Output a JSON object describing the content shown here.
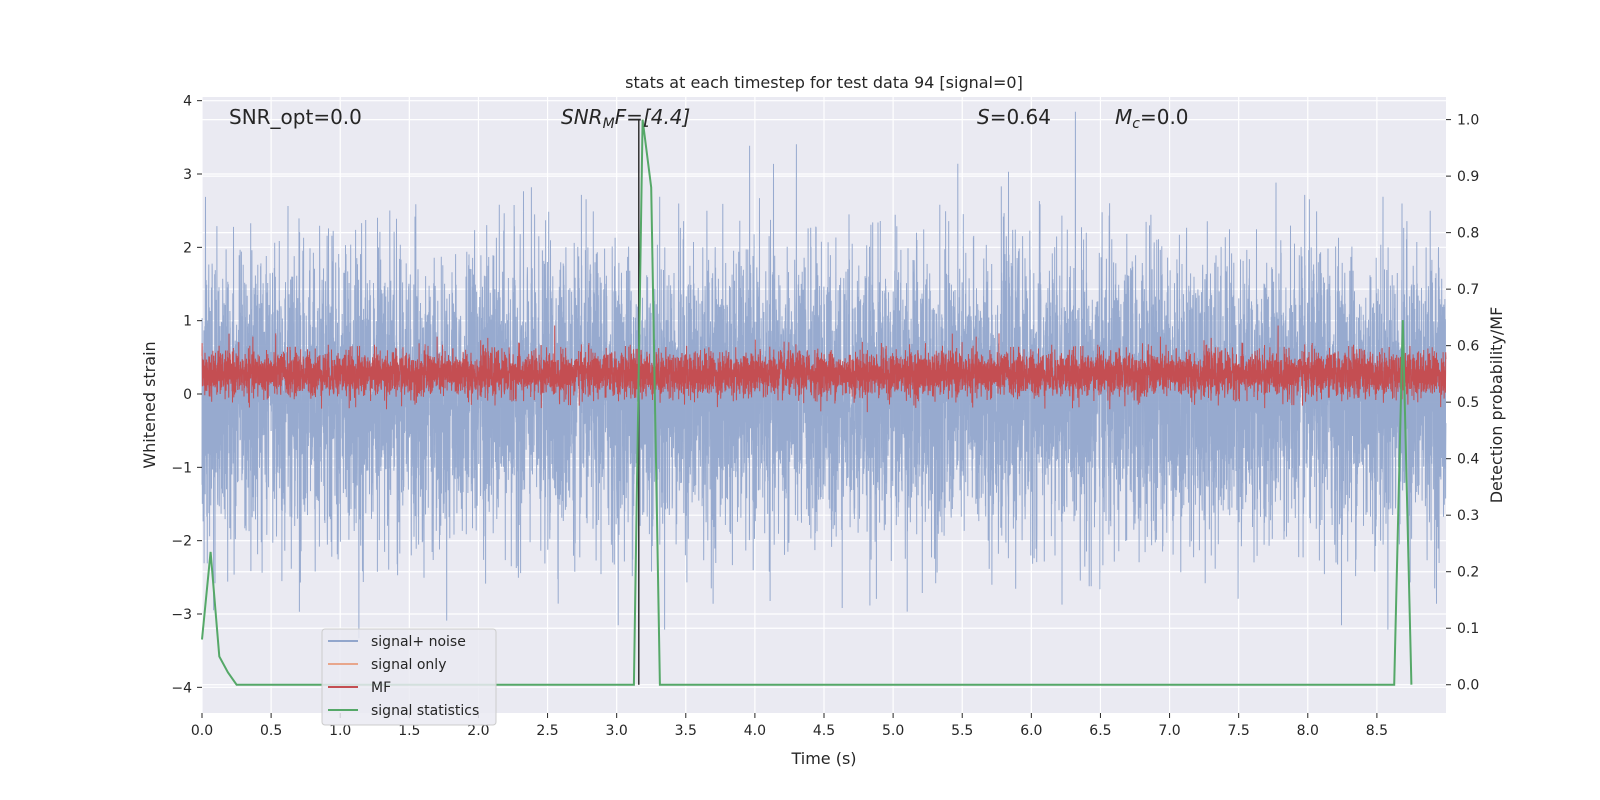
{
  "chart_data": {
    "type": "line",
    "title": "stats at each timestep for test data 94 [signal=0]",
    "xlabel": "Time (s)",
    "ylabel_left": "Whitened strain",
    "ylabel_right": "Detection probability/MF",
    "xlim": [
      0.0,
      9.0
    ],
    "ylim_left": [
      -4.35,
      4.05
    ],
    "ylim_right": [
      -0.05,
      1.04
    ],
    "x_ticks": [
      0.0,
      0.5,
      1.0,
      1.5,
      2.0,
      2.5,
      3.0,
      3.5,
      4.0,
      4.5,
      5.0,
      5.5,
      6.0,
      6.5,
      7.0,
      7.5,
      8.0,
      8.5
    ],
    "x_tick_labels": [
      "0.0",
      "0.5",
      "1.0",
      "1.5",
      "2.0",
      "2.5",
      "3.0",
      "3.5",
      "4.0",
      "4.5",
      "5.0",
      "5.5",
      "6.0",
      "6.5",
      "7.0",
      "7.5",
      "8.0",
      "8.5"
    ],
    "y_left_ticks": [
      -4,
      -3,
      -2,
      -1,
      0,
      1,
      2,
      3,
      4
    ],
    "y_left_tick_labels": [
      "−4",
      "−3",
      "−2",
      "−1",
      "0",
      "1",
      "2",
      "3",
      "4"
    ],
    "y_right_ticks": [
      0.0,
      0.1,
      0.2,
      0.3,
      0.4,
      0.5,
      0.6,
      0.7,
      0.8,
      0.9,
      1.0
    ],
    "y_right_tick_labels": [
      "0.0",
      "0.1",
      "0.2",
      "0.3",
      "0.4",
      "0.5",
      "0.6",
      "0.7",
      "0.8",
      "0.9",
      "1.0"
    ],
    "grid": true,
    "legend_position": "bottom-left",
    "annotations": {
      "snr_opt": "SNR_opt=0.0",
      "snr_mf_main": "SNR",
      "snr_mf_sub": "M",
      "snr_mf_rest": "F=[4.4]",
      "s_main": "S",
      "s_rest": "=0.64",
      "mc_main": "M",
      "mc_sub": "c",
      "mc_rest": "=0.0"
    },
    "marker_line_x": 3.16,
    "series": [
      {
        "name": "signal+ noise",
        "color": "#92a6cc",
        "axis": "left",
        "noise_std": 0.95,
        "sample_rate": 1000
      },
      {
        "name": "signal only",
        "color": "#e8a68c",
        "axis": "left",
        "values": []
      },
      {
        "name": "MF",
        "color": "#c44e52",
        "axis": "right",
        "mean": 0.55,
        "std": 0.02
      },
      {
        "name": "signal statistics",
        "color": "#55a868",
        "axis": "right",
        "x": [
          0.0,
          0.0625,
          0.125,
          0.1875,
          0.25,
          3.125,
          3.1875,
          3.25,
          3.3125,
          8.625,
          8.6875,
          8.75
        ],
        "values": [
          0.08,
          0.235,
          0.05,
          0.022,
          0.0,
          0.0,
          1.0,
          0.88,
          0.0,
          0.0,
          0.645,
          0.0
        ]
      }
    ]
  }
}
